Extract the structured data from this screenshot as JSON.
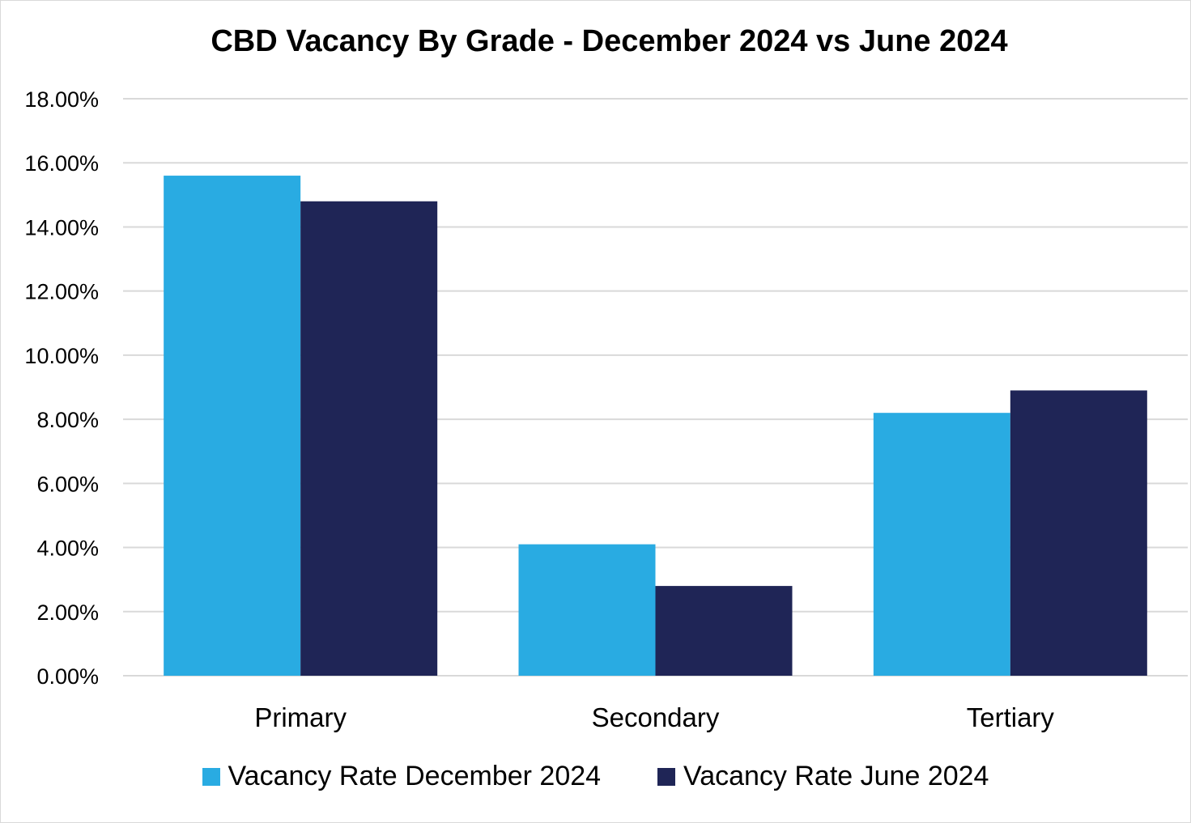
{
  "chart_data": {
    "type": "bar",
    "title": "CBD Vacancy By Grade - December 2024 vs June 2024",
    "xlabel": "",
    "ylabel": "",
    "categories": [
      "Primary",
      "Secondary",
      "Tertiary"
    ],
    "series": [
      {
        "name": "Vacancy Rate December 2024",
        "color": "#29abe2",
        "values": [
          15.6,
          4.1,
          8.2
        ]
      },
      {
        "name": "Vacancy Rate June 2024",
        "color": "#1f2556",
        "values": [
          14.8,
          2.8,
          8.9
        ]
      }
    ],
    "ylim": [
      0,
      18
    ],
    "yticks": [
      "0.00%",
      "2.00%",
      "4.00%",
      "6.00%",
      "8.00%",
      "10.00%",
      "12.00%",
      "14.00%",
      "16.00%",
      "18.00%"
    ],
    "grid": true,
    "legend_position": "bottom"
  }
}
